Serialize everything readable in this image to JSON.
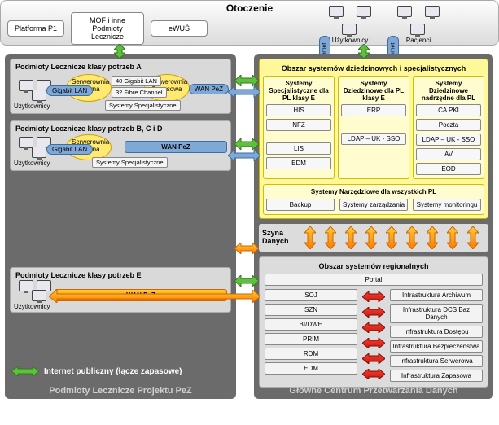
{
  "env": {
    "title": "Otoczenie",
    "boxes": [
      "Platforma P1",
      "MOF i inne Podmioty Lecznicze",
      "eWUŚ"
    ],
    "actors": [
      "Użytkownicy",
      "Pacjenci"
    ],
    "vlabel": "Internet"
  },
  "colors": {
    "green": "#5fbf3f",
    "green_stroke": "#2f7a1a",
    "blue": "#7fa8d6",
    "blue_stroke": "#3b6fa3",
    "orange_a": "#ffcc33",
    "orange_b": "#ff7a00",
    "orange_stroke": "#cc6600",
    "red_a": "#ff3b2f",
    "red_b": "#c41a10",
    "yellow_area": "#fff89a",
    "yellow_border": "#c7b400",
    "panel_gray": "#d9d9d9",
    "col_gray": "#6b6b6b"
  },
  "left": {
    "footer": "Podmioty Lecznicze Projektu PeZ",
    "a": {
      "title": "Podmioty Lecznicze klasy potrzeb A",
      "actor": "Użytkownicy",
      "ell1": "Serwerownia Główna",
      "ell2": "Serwerownia Zapasowa",
      "gig": "Gigabit LAN",
      "g40": "40 Gigabit LAN",
      "fc": "32 Fibre Channel",
      "spec": "Systemy Specjalistyczne",
      "wan": "WAN PeZ"
    },
    "bcd": {
      "title": "Podmioty Lecznicze klasy potrzeb B, C i D",
      "actor": "Użytkownicy",
      "ell": "Serwerownia Główna",
      "gig": "Gigabit LAN",
      "spec": "Systemy Specjalistyczne",
      "wan": "WAN PeZ"
    },
    "e": {
      "title": "Podmioty Lecznicze klasy potrzeb E",
      "actor": "Użytkownicy",
      "wan": "WAN PeZ"
    },
    "legend": "Internet publiczny (łącze zapasowe)"
  },
  "right": {
    "footer": "Główne Centrum Przetwarzania Danych",
    "domain": {
      "title": "Obszar systemów dziedzinowych i specjalistycznych",
      "g1": {
        "title": "Systemy Specjalistyczne dla PL klasy E",
        "boxes": [
          "HIS",
          "NFZ",
          "",
          "LIS",
          "EDM"
        ]
      },
      "g2": {
        "title": "Systemy Dziedzinowe dla PL klasy E",
        "boxes": [
          "ERP",
          "LDAP – UK - SSO"
        ]
      },
      "g3": {
        "title": "Systemy Dziedzinowe nadrzędne dla PL",
        "boxes": [
          "CA PKI",
          "Poczta",
          "LDAP – UK - SSO",
          "AV",
          "EOD"
        ]
      },
      "tools_title": "Systemy Narzędziowe dla wszystkich PL",
      "tools": [
        "Backup",
        "Systemy zarządzania",
        "Systemy monitoringu"
      ]
    },
    "bus": "Szyna\nDanych",
    "regional": {
      "title": "Obszar systemów regionalnych",
      "portal": "Portal",
      "left": [
        "SOJ",
        "SZN",
        "BI/DWH",
        "PRIM",
        "RDM",
        "EDM"
      ],
      "right": [
        "Infrastruktura Archiwum",
        "Infrastruktura DCS Baz Danych",
        "Infrastruktura Dostępu",
        "Infrastruktura Bezpieczeństwa",
        "Infrastruktura Serwerowa",
        "Infrastruktura Zapasowa"
      ]
    }
  }
}
